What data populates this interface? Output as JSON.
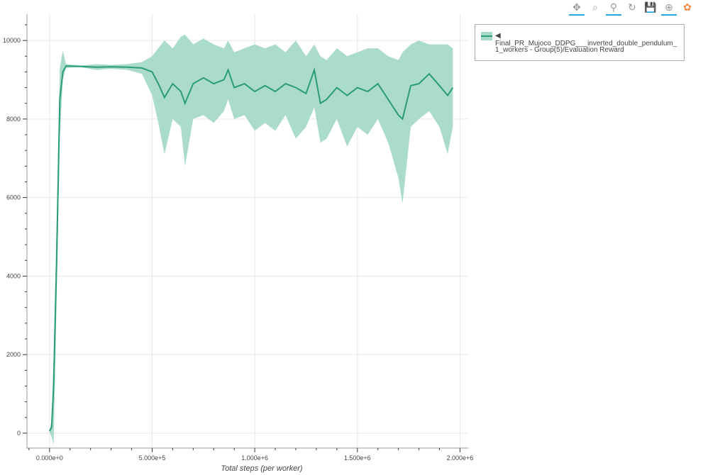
{
  "toolbar": {
    "tools": [
      {
        "name": "pan",
        "icon": "move-icon",
        "glyph": "✥",
        "active": true
      },
      {
        "name": "box-zoom",
        "icon": "box-zoom-icon",
        "glyph": "⌕",
        "active": false
      },
      {
        "name": "wheel-zoom",
        "icon": "wheel-zoom-icon",
        "glyph": "⚲",
        "active": true
      },
      {
        "name": "reset",
        "icon": "reset-icon",
        "glyph": "↻",
        "active": false
      },
      {
        "name": "save",
        "icon": "save-icon",
        "glyph": "💾",
        "active": false
      },
      {
        "name": "hover",
        "icon": "crosshair-icon",
        "glyph": "⊕",
        "active": true
      },
      {
        "name": "bokeh",
        "icon": "bokeh-logo-icon",
        "glyph": "✿",
        "active": false
      }
    ]
  },
  "legend": {
    "line1": "◀ Final_PR_Mujoco_DDPG___inverted_double_pendulum_",
    "line2": "1_workers - Group(5)/Evaluation Reward"
  },
  "colors": {
    "line": "#2a9d74",
    "band": "#a6d9c8",
    "grid": "#e8e8e8"
  },
  "chart_data": {
    "type": "line",
    "xlabel": "Total steps (per worker)",
    "ylabel": "",
    "xlim": [
      -110000,
      2040000
    ],
    "ylim": [
      -380,
      10670
    ],
    "x_ticks": [
      0,
      500000,
      1000000,
      1500000,
      2000000
    ],
    "x_tick_labels": [
      "0.000e+0",
      "5.000e+5",
      "1.000e+6",
      "1.500e+6",
      "2.000e+6"
    ],
    "y_ticks": [
      0,
      2000,
      4000,
      6000,
      8000,
      10000
    ],
    "y_tick_labels": [
      "0",
      "2000",
      "4000",
      "6000",
      "8000",
      "10000"
    ],
    "grid": true,
    "legend_placement": "outside-right",
    "series": [
      {
        "name": "Final_PR_Mujoco_DDPG___inverted_double_pendulum_1_workers - Group(5)/Evaluation Reward",
        "x": [
          0,
          10000,
          20000,
          35000,
          50000,
          65000,
          80000,
          150000,
          230000,
          300000,
          380000,
          450000,
          500000,
          530000,
          560000,
          600000,
          640000,
          660000,
          700000,
          750000,
          800000,
          850000,
          870000,
          900000,
          950000,
          1000000,
          1050000,
          1100000,
          1150000,
          1200000,
          1250000,
          1290000,
          1320000,
          1350000,
          1400000,
          1450000,
          1500000,
          1550000,
          1600000,
          1650000,
          1700000,
          1720000,
          1760000,
          1800000,
          1850000,
          1900000,
          1940000,
          1965000
        ],
        "mean": [
          50,
          150,
          1200,
          4500,
          8500,
          9200,
          9350,
          9340,
          9320,
          9330,
          9320,
          9300,
          9200,
          8900,
          8550,
          8900,
          8700,
          8400,
          8900,
          9050,
          8900,
          9000,
          9250,
          8800,
          8900,
          8700,
          8850,
          8700,
          8900,
          8800,
          8650,
          9250,
          8400,
          8500,
          8800,
          8600,
          8800,
          8700,
          8900,
          8500,
          8100,
          8000,
          8850,
          8900,
          9150,
          8850,
          8600,
          8800
        ],
        "lower": [
          30,
          -100,
          -300,
          3500,
          7500,
          9000,
          9300,
          9320,
          9250,
          9280,
          9250,
          9150,
          8600,
          7900,
          7100,
          8000,
          7800,
          6800,
          8000,
          8100,
          7900,
          8200,
          8500,
          8000,
          8100,
          7700,
          7900,
          7700,
          8100,
          7500,
          7800,
          8300,
          7400,
          7500,
          8000,
          7300,
          7800,
          7600,
          8000,
          7400,
          6500,
          5850,
          7800,
          8000,
          8200,
          7800,
          7100,
          7800
        ],
        "upper": [
          80,
          300,
          2000,
          5500,
          9300,
          9750,
          9400,
          9360,
          9400,
          9380,
          9400,
          9450,
          9600,
          9800,
          10000,
          9800,
          10100,
          10150,
          9900,
          10050,
          9900,
          9800,
          10000,
          9700,
          9800,
          9900,
          9800,
          9900,
          9700,
          10000,
          9600,
          9900,
          9600,
          9500,
          9800,
          9600,
          9700,
          9800,
          9800,
          9600,
          9500,
          9700,
          9900,
          10000,
          9900,
          9900,
          9900,
          9800
        ]
      }
    ]
  }
}
